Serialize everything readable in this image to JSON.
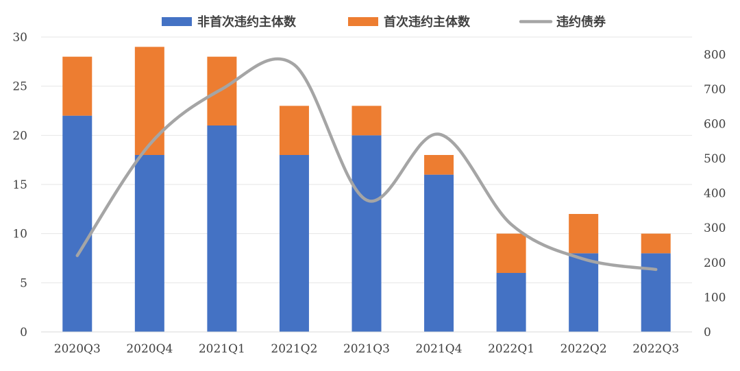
{
  "chart_data": {
    "type": "bar",
    "stacked": true,
    "categories": [
      "2020Q3",
      "2020Q4",
      "2021Q1",
      "2021Q2",
      "2021Q3",
      "2021Q4",
      "2022Q1",
      "2022Q2",
      "2022Q3"
    ],
    "series": [
      {
        "name": "非首次违约主体数",
        "type": "bar",
        "axis": "left",
        "color": "#4472C4",
        "values": [
          22,
          18,
          21,
          18,
          20,
          16,
          6,
          8,
          8
        ]
      },
      {
        "name": "首次违约主体数",
        "type": "bar",
        "axis": "left",
        "color": "#ED7D31",
        "values": [
          6,
          11,
          7,
          5,
          3,
          2,
          4,
          4,
          2
        ]
      },
      {
        "name": "违约债券",
        "type": "line",
        "smooth": true,
        "axis": "right",
        "color": "#A5A5A5",
        "values": [
          220,
          540,
          700,
          770,
          380,
          570,
          310,
          210,
          180
        ]
      }
    ],
    "left_axis": {
      "ylim": [
        0,
        30
      ],
      "ticks": [
        "0",
        "5",
        "10",
        "15",
        "20",
        "25",
        "30"
      ]
    },
    "right_axis": {
      "ylim": [
        0,
        850
      ],
      "ticks": [
        "0",
        "100",
        "200",
        "300",
        "400",
        "500",
        "600",
        "700",
        "800"
      ]
    },
    "grid": true,
    "legend_position": "top"
  }
}
